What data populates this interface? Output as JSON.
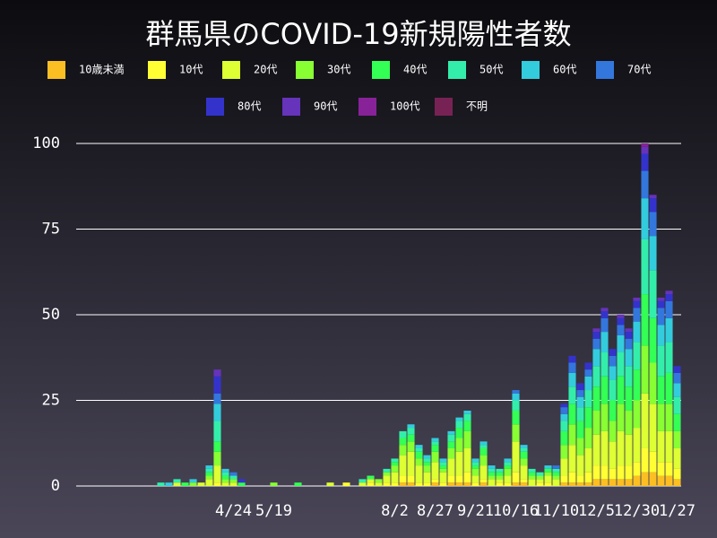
{
  "chart_data": {
    "type": "stacked_bar",
    "title": "群馬県のCOVID-19新規陽性者数",
    "categories": [
      null,
      null,
      null,
      null,
      null,
      null,
      null,
      null,
      null,
      null,
      null,
      null,
      null,
      null,
      null,
      null,
      null,
      null,
      null,
      "4/24",
      null,
      null,
      null,
      null,
      "5/19",
      null,
      null,
      null,
      null,
      null,
      null,
      null,
      null,
      null,
      null,
      null,
      null,
      null,
      null,
      "8/2",
      null,
      null,
      null,
      null,
      "8/27",
      null,
      null,
      null,
      null,
      "9/21",
      null,
      null,
      null,
      null,
      "10/16",
      null,
      null,
      null,
      null,
      "11/10",
      null,
      null,
      null,
      null,
      "12/5",
      null,
      null,
      null,
      null,
      "12/30",
      null,
      null,
      null,
      null,
      "1/27"
    ],
    "ylim": [
      0,
      100
    ],
    "yticks": [
      0,
      25,
      50,
      75,
      100
    ],
    "grid": true,
    "series": [
      {
        "name": "10歳未満",
        "color": "#fbbf24",
        "values": [
          0,
          0,
          0,
          0,
          0,
          0,
          0,
          0,
          0,
          0,
          0,
          0,
          0,
          0,
          0,
          0,
          0,
          0,
          0,
          0,
          0,
          0,
          0,
          0,
          0,
          0,
          0,
          0,
          0,
          0,
          0,
          0,
          0,
          0,
          0,
          0,
          0,
          0,
          0,
          0,
          1,
          1,
          0,
          0,
          1,
          0,
          1,
          1,
          1,
          0,
          1,
          0,
          0,
          0,
          1,
          1,
          0,
          0,
          0,
          0,
          1,
          1,
          1,
          1,
          2,
          2,
          2,
          2,
          2,
          3,
          4,
          4,
          3,
          3,
          2
        ]
      },
      {
        "name": "10代",
        "color": "#ffff33",
        "values": [
          0,
          0,
          0,
          0,
          0,
          0,
          0,
          0,
          0,
          0,
          0,
          0,
          0,
          0,
          0,
          0,
          0,
          1,
          0,
          0,
          0,
          0,
          0,
          0,
          0,
          0,
          0,
          0,
          0,
          0,
          0,
          0,
          0,
          1,
          0,
          0,
          1,
          0,
          1,
          1,
          2,
          2,
          1,
          1,
          1,
          1,
          2,
          2,
          3,
          1,
          1,
          0,
          1,
          1,
          3,
          1,
          0,
          1,
          1,
          0,
          2,
          3,
          2,
          3,
          4,
          4,
          3,
          4,
          4,
          4,
          7,
          6,
          4,
          4,
          3
        ]
      },
      {
        "name": "20代",
        "color": "#ddff33",
        "values": [
          0,
          0,
          0,
          0,
          0,
          0,
          0,
          0,
          0,
          0,
          0,
          0,
          1,
          0,
          0,
          1,
          2,
          5,
          1,
          1,
          0,
          0,
          0,
          0,
          0,
          0,
          0,
          0,
          0,
          0,
          0,
          1,
          0,
          0,
          0,
          1,
          1,
          1,
          2,
          3,
          6,
          7,
          5,
          3,
          5,
          3,
          5,
          7,
          7,
          2,
          4,
          2,
          1,
          2,
          9,
          4,
          2,
          1,
          2,
          2,
          5,
          8,
          6,
          7,
          9,
          10,
          8,
          10,
          9,
          10,
          16,
          14,
          9,
          9,
          6
        ]
      },
      {
        "name": "30代",
        "color": "#88ff33",
        "values": [
          0,
          0,
          0,
          0,
          0,
          0,
          0,
          0,
          0,
          0,
          0,
          0,
          0,
          0,
          1,
          0,
          1,
          4,
          1,
          1,
          0,
          0,
          0,
          0,
          1,
          0,
          0,
          0,
          0,
          0,
          0,
          0,
          0,
          0,
          0,
          0,
          0,
          1,
          1,
          2,
          3,
          3,
          2,
          2,
          3,
          1,
          3,
          4,
          5,
          2,
          3,
          1,
          1,
          2,
          5,
          2,
          1,
          1,
          1,
          1,
          4,
          6,
          5,
          6,
          7,
          8,
          6,
          8,
          7,
          8,
          14,
          12,
          8,
          8,
          5
        ]
      },
      {
        "name": "40代",
        "color": "#33ff55",
        "values": [
          0,
          0,
          0,
          0,
          0,
          0,
          0,
          0,
          0,
          0,
          0,
          0,
          0,
          1,
          0,
          0,
          1,
          3,
          1,
          0,
          1,
          0,
          0,
          0,
          0,
          0,
          0,
          1,
          0,
          0,
          0,
          0,
          0,
          0,
          0,
          0,
          1,
          0,
          0,
          1,
          2,
          2,
          2,
          1,
          2,
          1,
          2,
          3,
          3,
          1,
          2,
          1,
          1,
          1,
          4,
          2,
          1,
          0,
          1,
          1,
          4,
          6,
          5,
          6,
          7,
          8,
          6,
          8,
          7,
          9,
          15,
          13,
          8,
          9,
          5
        ]
      },
      {
        "name": "50代",
        "color": "#33eeaa",
        "values": [
          0,
          0,
          0,
          0,
          0,
          0,
          0,
          0,
          0,
          0,
          1,
          0,
          1,
          0,
          0,
          0,
          1,
          6,
          1,
          1,
          0,
          0,
          0,
          0,
          0,
          0,
          0,
          0,
          0,
          0,
          0,
          0,
          0,
          0,
          0,
          1,
          0,
          0,
          1,
          1,
          2,
          2,
          1,
          1,
          1,
          1,
          2,
          2,
          2,
          1,
          1,
          1,
          1,
          1,
          3,
          1,
          1,
          1,
          0,
          1,
          3,
          5,
          4,
          5,
          6,
          7,
          6,
          7,
          6,
          8,
          16,
          14,
          9,
          9,
          5
        ]
      },
      {
        "name": "60代",
        "color": "#33ccdd",
        "values": [
          0,
          0,
          0,
          0,
          0,
          0,
          0,
          0,
          0,
          0,
          0,
          1,
          0,
          0,
          1,
          0,
          1,
          5,
          1,
          0,
          0,
          0,
          0,
          0,
          0,
          0,
          0,
          0,
          0,
          0,
          0,
          0,
          0,
          0,
          0,
          0,
          0,
          0,
          0,
          0,
          0,
          1,
          1,
          1,
          1,
          1,
          1,
          1,
          1,
          1,
          1,
          1,
          0,
          1,
          2,
          1,
          0,
          0,
          1,
          0,
          2,
          4,
          3,
          4,
          5,
          6,
          4,
          5,
          5,
          6,
          12,
          10,
          6,
          7,
          4
        ]
      },
      {
        "name": "70代",
        "color": "#3377dd",
        "values": [
          0,
          0,
          0,
          0,
          0,
          0,
          0,
          0,
          0,
          0,
          0,
          0,
          0,
          0,
          0,
          0,
          0,
          3,
          0,
          1,
          0,
          0,
          0,
          0,
          0,
          0,
          0,
          0,
          0,
          0,
          0,
          0,
          0,
          0,
          0,
          0,
          0,
          0,
          0,
          0,
          0,
          0,
          0,
          0,
          0,
          0,
          0,
          0,
          0,
          0,
          0,
          0,
          0,
          0,
          1,
          0,
          0,
          0,
          0,
          1,
          2,
          3,
          2,
          2,
          3,
          4,
          3,
          3,
          3,
          4,
          8,
          7,
          5,
          5,
          3
        ]
      },
      {
        "name": "80代",
        "color": "#3333cc",
        "values": [
          0,
          0,
          0,
          0,
          0,
          0,
          0,
          0,
          0,
          0,
          0,
          0,
          0,
          0,
          0,
          0,
          0,
          5,
          0,
          0,
          1,
          0,
          0,
          0,
          0,
          0,
          0,
          0,
          0,
          0,
          0,
          0,
          0,
          0,
          0,
          0,
          0,
          0,
          0,
          0,
          0,
          0,
          0,
          0,
          0,
          0,
          0,
          0,
          0,
          0,
          0,
          0,
          0,
          0,
          0,
          0,
          0,
          0,
          0,
          0,
          1,
          2,
          2,
          2,
          2,
          2,
          2,
          2,
          2,
          2,
          5,
          4,
          2,
          2,
          2
        ]
      },
      {
        "name": "90代",
        "color": "#6633bb",
        "values": [
          0,
          0,
          0,
          0,
          0,
          0,
          0,
          0,
          0,
          0,
          0,
          0,
          0,
          0,
          0,
          0,
          0,
          2,
          0,
          0,
          0,
          0,
          0,
          0,
          0,
          0,
          0,
          0,
          0,
          0,
          0,
          0,
          0,
          0,
          0,
          0,
          0,
          0,
          0,
          0,
          0,
          0,
          0,
          0,
          0,
          0,
          0,
          0,
          0,
          0,
          0,
          0,
          0,
          0,
          0,
          0,
          0,
          0,
          0,
          0,
          0,
          0,
          0,
          0,
          1,
          1,
          0,
          1,
          1,
          1,
          2,
          1,
          1,
          1,
          0
        ]
      },
      {
        "name": "100代",
        "color": "#882299",
        "values": [
          0,
          0,
          0,
          0,
          0,
          0,
          0,
          0,
          0,
          0,
          0,
          0,
          0,
          0,
          0,
          0,
          0,
          0,
          0,
          0,
          0,
          0,
          0,
          0,
          0,
          0,
          0,
          0,
          0,
          0,
          0,
          0,
          0,
          0,
          0,
          0,
          0,
          0,
          0,
          0,
          0,
          0,
          0,
          0,
          0,
          0,
          0,
          0,
          0,
          0,
          0,
          0,
          0,
          0,
          0,
          0,
          0,
          0,
          0,
          0,
          0,
          0,
          0,
          0,
          0,
          0,
          0,
          0,
          0,
          0,
          1,
          0,
          0,
          0,
          0
        ]
      },
      {
        "name": "不明",
        "color": "#772255",
        "values": [
          0,
          0,
          0,
          0,
          0,
          0,
          0,
          0,
          0,
          0,
          0,
          0,
          0,
          0,
          0,
          0,
          0,
          0,
          0,
          0,
          0,
          0,
          0,
          0,
          0,
          0,
          0,
          0,
          0,
          0,
          0,
          0,
          0,
          0,
          0,
          0,
          0,
          0,
          0,
          0,
          0,
          0,
          0,
          0,
          0,
          0,
          0,
          0,
          0,
          0,
          0,
          0,
          0,
          0,
          0,
          0,
          0,
          0,
          0,
          0,
          0,
          0,
          0,
          0,
          0,
          0,
          0,
          0,
          0,
          0,
          0,
          0,
          0,
          0,
          0
        ]
      }
    ]
  }
}
